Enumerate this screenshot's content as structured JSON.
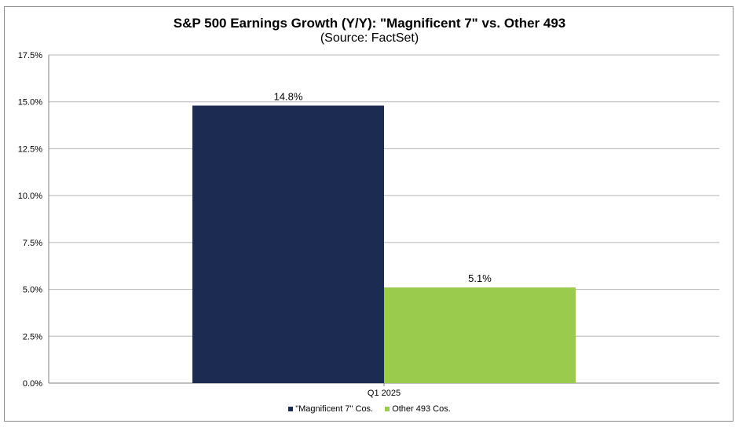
{
  "chart_data": {
    "type": "bar",
    "title": "S&P 500 Earnings Growth (Y/Y): \"Magnificent 7\" vs. Other 493",
    "subtitle": "(Source: FactSet)",
    "categories": [
      "Q1 2025"
    ],
    "series": [
      {
        "name": "\"Magnificent 7\" Cos.",
        "values": [
          14.8
        ],
        "labels": [
          "14.8%"
        ],
        "color": "#1b2b52"
      },
      {
        "name": "Other 493 Cos.",
        "values": [
          5.1
        ],
        "labels": [
          "5.1%"
        ],
        "color": "#9acb4c"
      }
    ],
    "ylim": [
      0,
      17.5
    ],
    "yticks": [
      0,
      2.5,
      5,
      7.5,
      10,
      12.5,
      15,
      17.5
    ],
    "ytick_labels": [
      "0.0%",
      "2.5%",
      "5.0%",
      "7.5%",
      "10.0%",
      "12.5%",
      "15.0%",
      "17.5%"
    ],
    "xlabel": "",
    "ylabel": "",
    "grid": true,
    "legend": "bottom"
  }
}
